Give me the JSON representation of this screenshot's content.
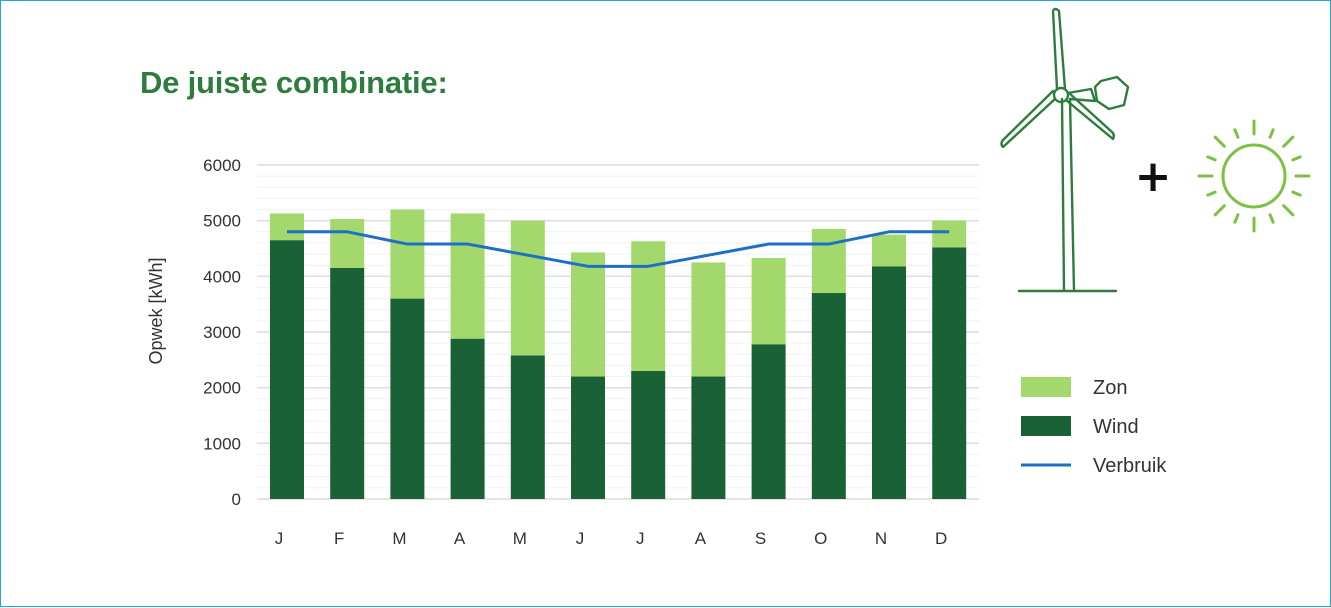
{
  "title": "De juiste combinatie:",
  "chart_data": {
    "type": "bar",
    "stacked": true,
    "categories": [
      "J",
      "F",
      "M",
      "A",
      "M",
      "J",
      "J",
      "A",
      "S",
      "O",
      "N",
      "D"
    ],
    "ylabel": "Opwek [kWh]",
    "ylim": [
      0,
      6000
    ],
    "yticks": [
      "0",
      "1000",
      "2000",
      "3000",
      "4000",
      "5000",
      "6000"
    ],
    "grid": true,
    "legend_position": "right",
    "series": [
      {
        "name": "Wind",
        "type": "bar",
        "color": "#1a6136",
        "values": [
          4650,
          4150,
          3600,
          2880,
          2580,
          2200,
          2300,
          2200,
          2780,
          3700,
          4180,
          4520
        ]
      },
      {
        "name": "Zon",
        "type": "bar",
        "color": "#a3d96c",
        "values": [
          480,
          880,
          1600,
          2250,
          2420,
          2230,
          2330,
          2050,
          1550,
          1150,
          570,
          480
        ]
      },
      {
        "name": "Verbruik",
        "type": "line",
        "color": "#1f6fc4",
        "values": [
          4800,
          4800,
          4580,
          4580,
          4380,
          4180,
          4180,
          4380,
          4580,
          4580,
          4800,
          4800
        ]
      }
    ],
    "legend": [
      "Zon",
      "Wind",
      "Verbruik"
    ]
  },
  "illustration": {
    "plus_symbol": "+",
    "icons": [
      "wind-turbine-icon",
      "sun-icon"
    ],
    "turbine_color": "#2e7d3e",
    "sun_color": "#7cc242"
  }
}
